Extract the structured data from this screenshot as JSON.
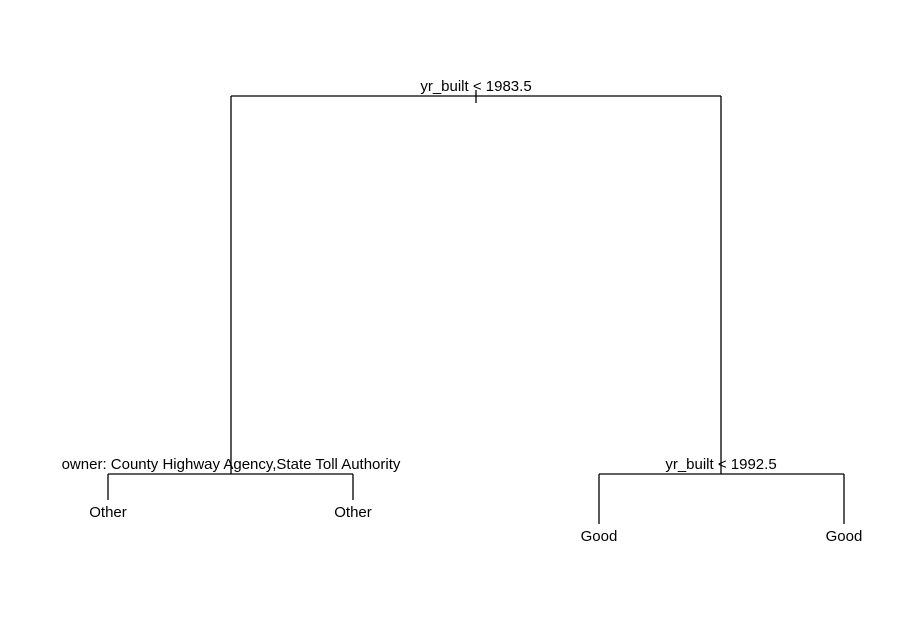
{
  "tree": {
    "root": {
      "split_label": "yr_built < 1983.5"
    },
    "left_node": {
      "split_label": "owner: County Highway Agency,State Toll Authority",
      "left_leaf": "Other",
      "right_leaf": "Other"
    },
    "right_node": {
      "split_label": "yr_built < 1992.5",
      "left_leaf": "Good",
      "right_leaf": "Good"
    }
  },
  "colors": {
    "line": "#000000",
    "text": "#000000",
    "background": "#ffffff"
  }
}
